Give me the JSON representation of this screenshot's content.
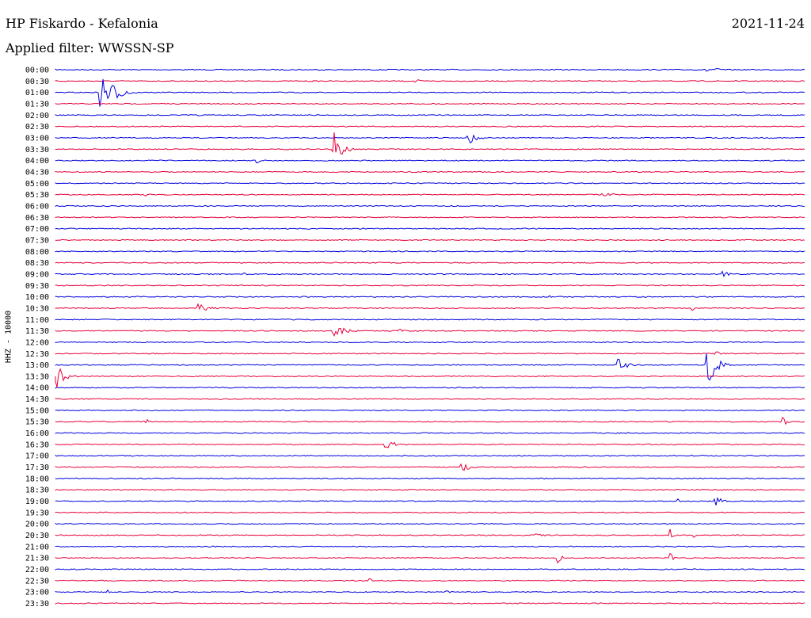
{
  "header": {
    "station": "HP Fiskardo - Kefalonia",
    "date": "2021-11-24",
    "filter": "Applied filter: WWSSN-SP"
  },
  "axis_label": "HHZ - 10000",
  "colors": {
    "even": "#0000e0",
    "odd": "#e8003a"
  },
  "chart_data": {
    "type": "line",
    "rows": [
      {
        "label": "00:00",
        "events": [
          {
            "x": 0.87,
            "amp": 4,
            "width": 0.03
          }
        ]
      },
      {
        "label": "00:30",
        "events": [
          {
            "x": 0.48,
            "amp": 4,
            "width": 0.01
          }
        ]
      },
      {
        "label": "01:00",
        "events": [
          {
            "x": 0.06,
            "amp": 26,
            "width": 0.04
          }
        ]
      },
      {
        "label": "01:30",
        "events": []
      },
      {
        "label": "02:00",
        "events": [
          {
            "x": 0.19,
            "amp": 3,
            "width": 0.005
          }
        ]
      },
      {
        "label": "02:30",
        "events": []
      },
      {
        "label": "03:00",
        "events": [
          {
            "x": 0.55,
            "amp": 12,
            "width": 0.02
          }
        ]
      },
      {
        "label": "03:30",
        "events": [
          {
            "x": 0.37,
            "amp": 34,
            "width": 0.02
          }
        ]
      },
      {
        "label": "04:00",
        "events": [
          {
            "x": 0.27,
            "amp": 3,
            "width": 0.01
          }
        ]
      },
      {
        "label": "04:30",
        "events": []
      },
      {
        "label": "05:00",
        "events": []
      },
      {
        "label": "05:30",
        "events": [
          {
            "x": 0.12,
            "amp": 2,
            "width": 0.03
          },
          {
            "x": 0.73,
            "amp": 2,
            "width": 0.05
          }
        ]
      },
      {
        "label": "06:00",
        "events": []
      },
      {
        "label": "06:30",
        "events": []
      },
      {
        "label": "07:00",
        "events": [
          {
            "x": 0.15,
            "amp": 3,
            "width": 0.005
          }
        ]
      },
      {
        "label": "07:30",
        "events": []
      },
      {
        "label": "08:00",
        "events": []
      },
      {
        "label": "08:30",
        "events": [
          {
            "x": 0.73,
            "amp": 2,
            "width": 0.01
          }
        ]
      },
      {
        "label": "09:00",
        "events": [
          {
            "x": 0.25,
            "amp": 3,
            "width": 0.01
          },
          {
            "x": 0.89,
            "amp": 4,
            "width": 0.02
          }
        ]
      },
      {
        "label": "09:30",
        "events": []
      },
      {
        "label": "10:00",
        "events": [
          {
            "x": 0.66,
            "amp": 2,
            "width": 0.01
          }
        ]
      },
      {
        "label": "10:30",
        "events": [
          {
            "x": 0.19,
            "amp": 6,
            "width": 0.03
          },
          {
            "x": 0.85,
            "amp": 5,
            "width": 0.005
          }
        ]
      },
      {
        "label": "11:00",
        "events": []
      },
      {
        "label": "11:30",
        "events": [
          {
            "x": 0.37,
            "amp": 10,
            "width": 0.03
          },
          {
            "x": 0.46,
            "amp": 3,
            "width": 0.01
          }
        ]
      },
      {
        "label": "12:00",
        "events": []
      },
      {
        "label": "12:30",
        "events": [
          {
            "x": 0.88,
            "amp": 3,
            "width": 0.02
          }
        ]
      },
      {
        "label": "13:00",
        "events": [
          {
            "x": 0.75,
            "amp": 8,
            "width": 0.03
          },
          {
            "x": 0.87,
            "amp": 34,
            "width": 0.02
          }
        ]
      },
      {
        "label": "13:30",
        "events": [
          {
            "x": 0.002,
            "amp": 16,
            "width": 0.02
          }
        ]
      },
      {
        "label": "14:00",
        "events": []
      },
      {
        "label": "14:30",
        "events": [
          {
            "x": 0.22,
            "amp": 2,
            "width": 0.005
          }
        ]
      },
      {
        "label": "15:00",
        "events": []
      },
      {
        "label": "15:30",
        "events": [
          {
            "x": 0.12,
            "amp": 5,
            "width": 0.01
          },
          {
            "x": 0.97,
            "amp": 8,
            "width": 0.01
          }
        ]
      },
      {
        "label": "16:00",
        "events": []
      },
      {
        "label": "16:30",
        "events": [
          {
            "x": 0.44,
            "amp": 6,
            "width": 0.03
          },
          {
            "x": 0.79,
            "amp": 2,
            "width": 0.005
          }
        ]
      },
      {
        "label": "17:00",
        "events": []
      },
      {
        "label": "17:30",
        "events": [
          {
            "x": 0.54,
            "amp": 6,
            "width": 0.03
          }
        ]
      },
      {
        "label": "18:00",
        "events": []
      },
      {
        "label": "18:30",
        "events": []
      },
      {
        "label": "19:00",
        "events": [
          {
            "x": 0.83,
            "amp": 3,
            "width": 0.005
          },
          {
            "x": 0.88,
            "amp": 7,
            "width": 0.02
          }
        ]
      },
      {
        "label": "19:30",
        "events": []
      },
      {
        "label": "20:00",
        "events": []
      },
      {
        "label": "20:30",
        "events": [
          {
            "x": 0.64,
            "amp": 4,
            "width": 0.02
          },
          {
            "x": 0.82,
            "amp": 8,
            "width": 0.005
          },
          {
            "x": 0.85,
            "amp": 6,
            "width": 0.005
          }
        ]
      },
      {
        "label": "21:00",
        "events": []
      },
      {
        "label": "21:30",
        "events": [
          {
            "x": 0.67,
            "amp": 8,
            "width": 0.01
          },
          {
            "x": 0.82,
            "amp": 7,
            "width": 0.01
          }
        ]
      },
      {
        "label": "22:00",
        "events": []
      },
      {
        "label": "22:30",
        "events": [
          {
            "x": 0.42,
            "amp": 3,
            "width": 0.005
          }
        ]
      },
      {
        "label": "23:00",
        "events": [
          {
            "x": 0.07,
            "amp": 3,
            "width": 0.005
          },
          {
            "x": 0.52,
            "amp": 2,
            "width": 0.02
          }
        ]
      },
      {
        "label": "23:30",
        "events": []
      }
    ]
  }
}
